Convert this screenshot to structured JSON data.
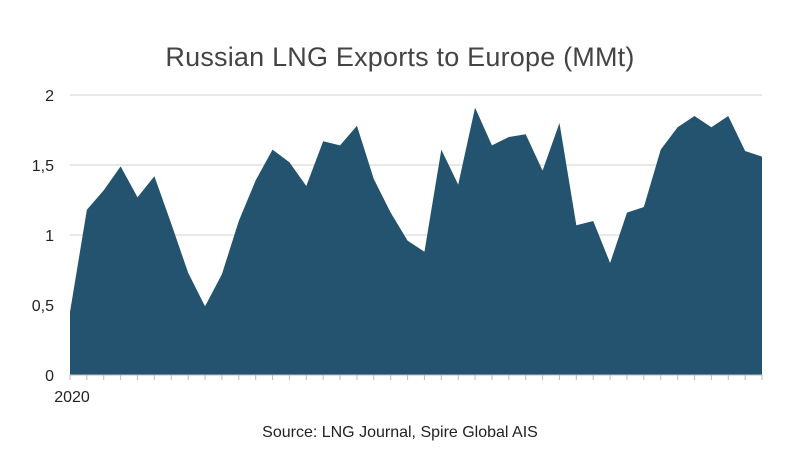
{
  "chart_data": {
    "type": "area",
    "title": "Russian LNG Exports to Europe (MMt)",
    "source": "Source: LNG Journal, Spire Global AIS",
    "xlabel": "",
    "ylabel": "",
    "x_tick_labels": [
      "2020"
    ],
    "y_ticks": [
      {
        "value": 0,
        "label": "0"
      },
      {
        "value": 0.5,
        "label": "0,5"
      },
      {
        "value": 1,
        "label": "1"
      },
      {
        "value": 1.5,
        "label": "1,5"
      },
      {
        "value": 2,
        "label": "2"
      }
    ],
    "ylim": [
      0,
      2
    ],
    "grid": true,
    "legend": "none",
    "series": [
      {
        "color": "#23536f",
        "values": [
          0.45,
          1.18,
          1.32,
          1.49,
          1.27,
          1.42,
          1.08,
          0.73,
          0.49,
          0.72,
          1.1,
          1.39,
          1.61,
          1.52,
          1.35,
          1.67,
          1.64,
          1.78,
          1.4,
          1.16,
          0.96,
          0.88,
          1.61,
          1.36,
          1.91,
          1.64,
          1.7,
          1.72,
          1.46,
          1.8,
          1.07,
          1.1,
          0.8,
          1.16,
          1.2,
          1.61,
          1.77,
          1.85,
          1.77,
          1.85,
          1.6,
          1.56
        ]
      }
    ]
  }
}
